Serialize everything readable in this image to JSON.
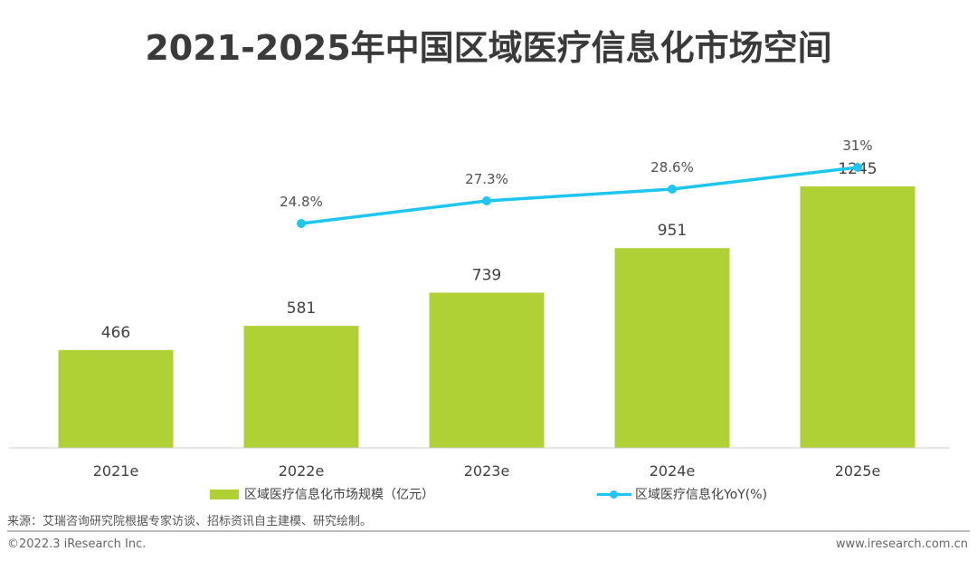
{
  "chart_data": {
    "type": "bar",
    "title": "2021-2025年中国区域医疗信息化市场空间",
    "categories": [
      "2021e",
      "2022e",
      "2023e",
      "2024e",
      "2025e"
    ],
    "series": [
      {
        "name": "区域医疗信息化市场规模（亿元）",
        "type": "bar",
        "color": "#afd135",
        "values": [
          466,
          581,
          739,
          951,
          1245
        ],
        "labels": [
          "466",
          "581",
          "739",
          "951",
          "1245"
        ]
      },
      {
        "name": "区域医疗信息化YoY(%)",
        "type": "line",
        "color": "#1ec5ee",
        "values": [
          null,
          24.8,
          27.3,
          28.6,
          31
        ],
        "labels": [
          "",
          "24.8%",
          "27.3%",
          "28.6%",
          "31%"
        ]
      }
    ],
    "ylim": [
      0,
      1400
    ],
    "y2lim": [
      0,
      47.5
    ],
    "grid": false,
    "legend_position": "bottom"
  },
  "footer": {
    "source": "来源：艾瑞咨询研究院根据专家访谈、招标资讯自主建模、研究绘制。",
    "copyright": "©2022.3 iResearch Inc.",
    "url": "www.iresearch.com.cn"
  }
}
